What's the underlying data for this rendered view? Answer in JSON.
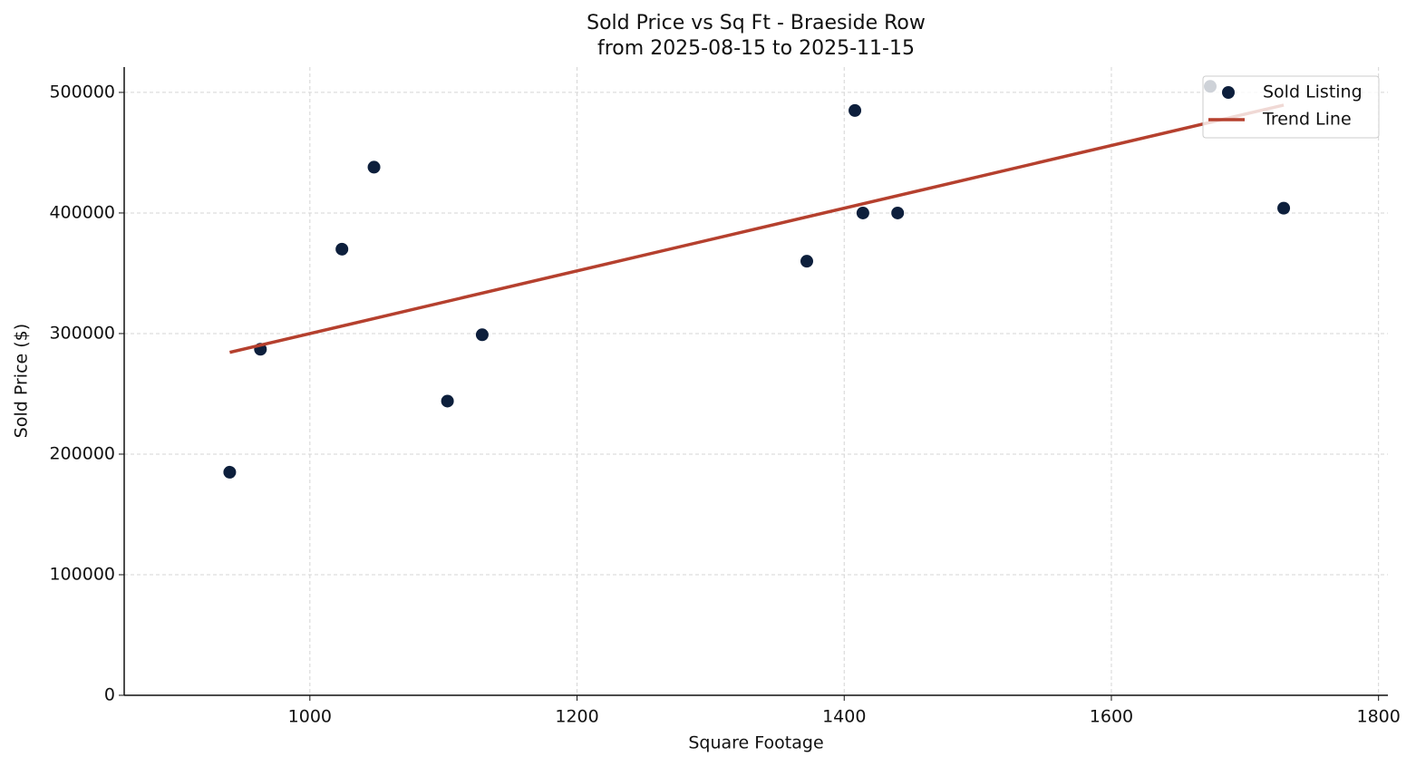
{
  "chart_data": {
    "type": "scatter",
    "title": "Sold Price vs Sq Ft - Braeside Row",
    "subtitle": "from 2025-08-15 to 2025-11-15",
    "x_label": "Square Footage",
    "y_label": "Sold Price ($)",
    "series": [
      {
        "name": "Sold Listing",
        "type": "scatter",
        "color": "#0d1f3c",
        "x": [
          940,
          963,
          1024,
          1048,
          1103,
          1129,
          1372,
          1408,
          1414,
          1440,
          1674,
          1729
        ],
        "values": [
          185000,
          287000,
          370000,
          438000,
          244000,
          299000,
          360000,
          485000,
          400000,
          400000,
          505000,
          404000
        ]
      },
      {
        "name": "Trend Line",
        "type": "line",
        "color": "#b5402e",
        "x": [
          940,
          1729
        ],
        "values": [
          284400,
          489500
        ]
      }
    ],
    "xlim": [
      861,
      1807
    ],
    "xticks": [
      1000,
      1200,
      1400,
      1600,
      1800
    ],
    "ylim": [
      0,
      521000
    ],
    "yticks": [
      0,
      100000,
      200000,
      300000,
      400000,
      500000
    ],
    "grid": true,
    "legend": "upper right"
  }
}
